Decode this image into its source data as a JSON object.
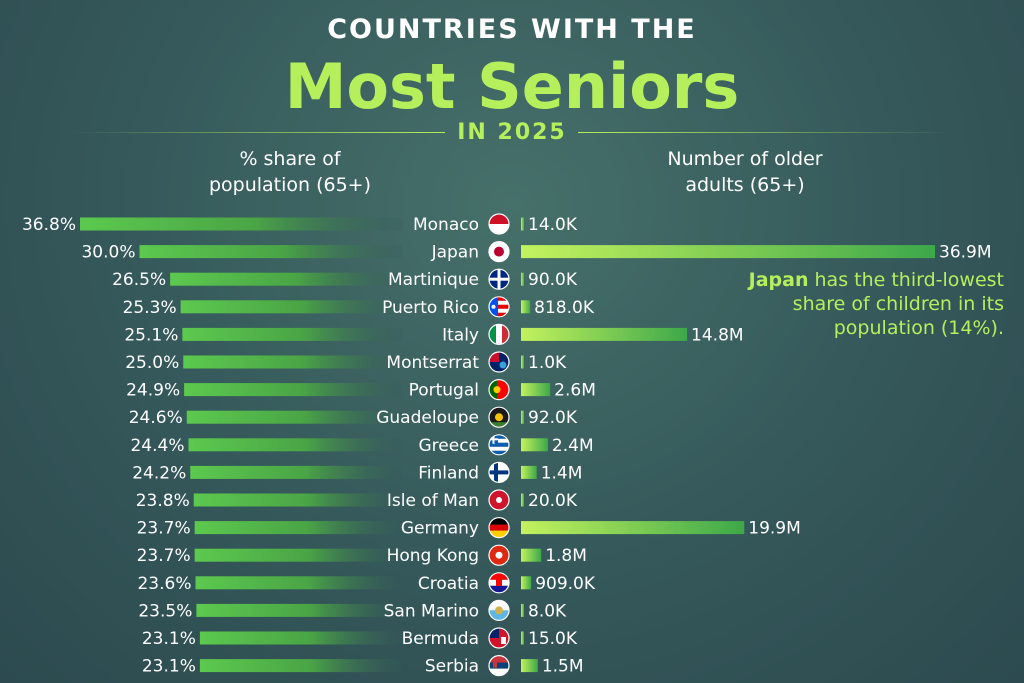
{
  "header": {
    "title_top": "COUNTRIES WITH THE",
    "title_main": "Most Seniors",
    "title_sub": "IN 2025"
  },
  "columns": {
    "left_line1": "% share of",
    "left_line2": "population (65+)",
    "right_line1": "Number of older",
    "right_line2": "adults (65+)"
  },
  "annotation": {
    "bold": "Japan",
    "rest": " has the third-lowest share of children in its population (14%)."
  },
  "colors": {
    "share_bar": "#5cc94e",
    "count_bar": "#b6ef5c",
    "accent": "#b6ef5c"
  },
  "chart_data": {
    "type": "bar",
    "categories": [
      "Monaco",
      "Japan",
      "Martinique",
      "Puerto Rico",
      "Italy",
      "Montserrat",
      "Portugal",
      "Guadeloupe",
      "Greece",
      "Finland",
      "Isle of Man",
      "Germany",
      "Hong Kong",
      "Croatia",
      "San Marino",
      "Bermuda",
      "Serbia"
    ],
    "series": [
      {
        "name": "% share of population (65+)",
        "values": [
          36.8,
          30.0,
          26.5,
          25.3,
          25.1,
          25.0,
          24.9,
          24.6,
          24.4,
          24.2,
          23.8,
          23.7,
          23.7,
          23.6,
          23.5,
          23.1,
          23.1
        ],
        "labels": [
          "36.8%",
          "30.0%",
          "26.5%",
          "25.3%",
          "25.1%",
          "25.0%",
          "24.9%",
          "24.6%",
          "24.4%",
          "24.2%",
          "23.8%",
          "23.7%",
          "23.7%",
          "23.6%",
          "23.5%",
          "23.1%",
          "23.1%"
        ]
      },
      {
        "name": "Number of older adults (65+)",
        "values": [
          14000,
          36900000,
          90000,
          818000,
          14800000,
          1000,
          2600000,
          92000,
          2400000,
          1400000,
          20000,
          19900000,
          1800000,
          909000,
          8000,
          15000,
          1500000
        ],
        "labels": [
          "14.0K",
          "36.9M",
          "90.0K",
          "818.0K",
          "14.8M",
          "1.0K",
          "2.6M",
          "92.0K",
          "2.4M",
          "1.4M",
          "20.0K",
          "19.9M",
          "1.8M",
          "909.0K",
          "8.0K",
          "15.0K",
          "1.5M"
        ]
      }
    ],
    "flags": [
      "monaco",
      "japan",
      "martinique",
      "puerto-rico",
      "italy",
      "montserrat",
      "portugal",
      "guadeloupe",
      "greece",
      "finland",
      "isle-of-man",
      "germany",
      "hong-kong",
      "croatia",
      "san-marino",
      "bermuda",
      "serbia"
    ]
  }
}
